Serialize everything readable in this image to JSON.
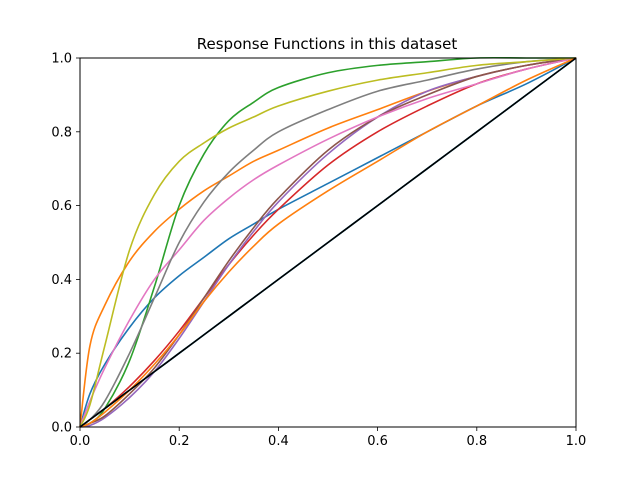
{
  "chart_data": {
    "type": "line",
    "title": "Response Functions in this dataset",
    "xlabel": "",
    "ylabel": "",
    "xlim": [
      0.0,
      1.0
    ],
    "ylim": [
      0.0,
      1.0
    ],
    "x_ticks": [
      "0.0",
      "0.2",
      "0.4",
      "0.6",
      "0.8",
      "1.0"
    ],
    "y_ticks": [
      "0.0",
      "0.2",
      "0.4",
      "0.6",
      "0.8",
      "1.0"
    ],
    "grid": false,
    "legend": "none",
    "x": [
      0,
      0.02,
      0.05,
      0.1,
      0.15,
      0.2,
      0.25,
      0.3,
      0.35,
      0.4,
      0.5,
      0.6,
      0.7,
      0.8,
      0.9,
      1.0
    ],
    "series": [
      {
        "color": "#1f77b4",
        "values": [
          0,
          0.09,
          0.17,
          0.27,
          0.35,
          0.41,
          0.46,
          0.51,
          0.55,
          0.59,
          0.66,
          0.73,
          0.8,
          0.87,
          0.93,
          1.0
        ]
      },
      {
        "color": "#ff7f0e",
        "values": [
          0,
          0.22,
          0.33,
          0.45,
          0.53,
          0.59,
          0.64,
          0.68,
          0.72,
          0.75,
          0.81,
          0.86,
          0.91,
          0.95,
          0.98,
          1.0
        ]
      },
      {
        "color": "#2ca02c",
        "values": [
          0,
          0.01,
          0.05,
          0.18,
          0.38,
          0.6,
          0.74,
          0.83,
          0.88,
          0.92,
          0.96,
          0.98,
          0.99,
          1.0,
          1.0,
          1.0
        ]
      },
      {
        "color": "#d62728",
        "values": [
          0,
          0.02,
          0.05,
          0.11,
          0.18,
          0.26,
          0.35,
          0.44,
          0.52,
          0.59,
          0.71,
          0.8,
          0.87,
          0.93,
          0.97,
          1.0
        ]
      },
      {
        "color": "#9467bd",
        "values": [
          0,
          0.004,
          0.025,
          0.08,
          0.15,
          0.24,
          0.34,
          0.44,
          0.53,
          0.61,
          0.74,
          0.84,
          0.91,
          0.95,
          0.98,
          1.0
        ]
      },
      {
        "color": "#8c564b",
        "values": [
          0,
          0.01,
          0.03,
          0.09,
          0.16,
          0.25,
          0.35,
          0.45,
          0.54,
          0.62,
          0.75,
          0.84,
          0.9,
          0.95,
          0.98,
          1.0
        ]
      },
      {
        "color": "#e377c2",
        "values": [
          0,
          0.07,
          0.16,
          0.29,
          0.4,
          0.48,
          0.56,
          0.62,
          0.67,
          0.71,
          0.78,
          0.84,
          0.89,
          0.93,
          0.97,
          1.0
        ]
      },
      {
        "color": "#7f7f7f",
        "values": [
          0,
          0.02,
          0.07,
          0.2,
          0.35,
          0.5,
          0.61,
          0.69,
          0.75,
          0.8,
          0.86,
          0.91,
          0.94,
          0.97,
          0.99,
          1.0
        ]
      },
      {
        "color": "#bcbd22",
        "values": [
          0,
          0.06,
          0.22,
          0.48,
          0.63,
          0.72,
          0.77,
          0.81,
          0.84,
          0.87,
          0.91,
          0.94,
          0.96,
          0.98,
          0.99,
          1.0
        ]
      },
      {
        "color": "#17becf",
        "values": [
          0,
          0.02,
          0.05,
          0.1,
          0.15,
          0.2,
          0.25,
          0.3,
          0.35,
          0.4,
          0.5,
          0.6,
          0.7,
          0.8,
          0.9,
          1.0
        ]
      },
      {
        "color": "#1f77b4",
        "values": [
          0,
          0.02,
          0.05,
          0.1,
          0.15,
          0.2,
          0.25,
          0.3,
          0.35,
          0.4,
          0.5,
          0.6,
          0.7,
          0.8,
          0.9,
          1.0
        ]
      },
      {
        "color": "#ff7f0e",
        "values": [
          0,
          0.01,
          0.04,
          0.1,
          0.17,
          0.25,
          0.34,
          0.42,
          0.49,
          0.55,
          0.64,
          0.72,
          0.8,
          0.87,
          0.94,
          1.0
        ]
      },
      {
        "color": "#000000",
        "values": [
          0,
          0.02,
          0.05,
          0.1,
          0.15,
          0.2,
          0.25,
          0.3,
          0.35,
          0.4,
          0.5,
          0.6,
          0.7,
          0.8,
          0.9,
          1.0
        ]
      }
    ]
  }
}
